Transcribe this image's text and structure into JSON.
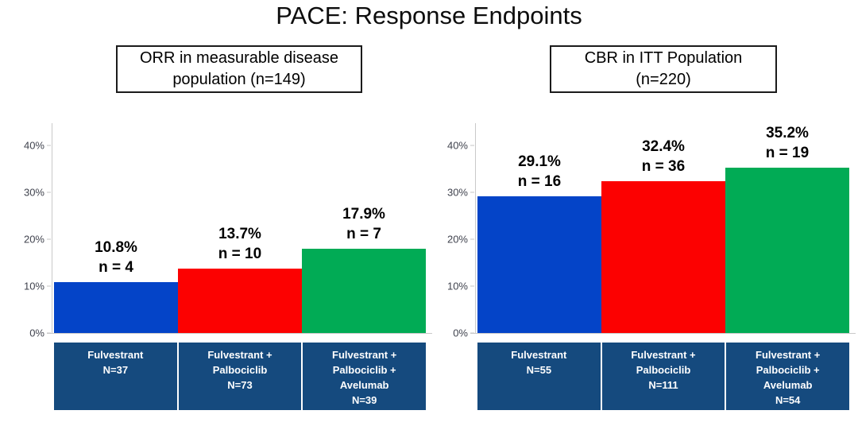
{
  "title": "PACE: Response Endpoints",
  "colors": {
    "bar_blue": "#0444C8",
    "bar_red": "#FC0101",
    "bar_green": "#01AB55",
    "category_box": "#154A7E",
    "axis_line": "#C9C9C9"
  },
  "chart_data": [
    {
      "type": "bar",
      "title": "ORR in measurable disease population (n=149)",
      "title_lines": [
        "ORR in measurable disease",
        "population (n=149)"
      ],
      "ylim": [
        0,
        40
      ],
      "grid": false,
      "legend": "none",
      "yticks": [
        {
          "label": "0%",
          "value": 0
        },
        {
          "label": "10%",
          "value": 10
        },
        {
          "label": "20%",
          "value": 20
        },
        {
          "label": "30%",
          "value": 30
        },
        {
          "label": "40%",
          "value": 40
        }
      ],
      "bars": [
        {
          "value_pct": 10.8,
          "value_label": "10.8%",
          "n": 4,
          "n_label": "n = 4",
          "color": "#0444C8",
          "category_lines": [
            "Fulvestrant",
            "N=37"
          ],
          "category_N": 37
        },
        {
          "value_pct": 13.7,
          "value_label": "13.7%",
          "n": 10,
          "n_label": "n = 10",
          "color": "#FC0101",
          "category_lines": [
            "Fulvestrant +",
            "Palbociclib",
            "N=73"
          ],
          "category_N": 73
        },
        {
          "value_pct": 17.9,
          "value_label": "17.9%",
          "n": 7,
          "n_label": "n = 7",
          "color": "#01AB55",
          "category_lines": [
            "Fulvestrant +",
            "Palbociclib +",
            "Avelumab",
            "N=39"
          ],
          "category_N": 39
        }
      ]
    },
    {
      "type": "bar",
      "title": "CBR in ITT Population (n=220)",
      "title_lines": [
        "CBR in ITT Population",
        "(n=220)"
      ],
      "ylim": [
        0,
        40
      ],
      "grid": false,
      "legend": "none",
      "yticks": [
        {
          "label": "0%",
          "value": 0
        },
        {
          "label": "10%",
          "value": 10
        },
        {
          "label": "20%",
          "value": 20
        },
        {
          "label": "30%",
          "value": 30
        },
        {
          "label": "40%",
          "value": 40
        }
      ],
      "bars": [
        {
          "value_pct": 29.1,
          "value_label": "29.1%",
          "n": 16,
          "n_label": "n = 16",
          "color": "#0444C8",
          "category_lines": [
            "Fulvestrant",
            "N=55"
          ],
          "category_N": 55
        },
        {
          "value_pct": 32.4,
          "value_label": "32.4%",
          "n": 36,
          "n_label": "n = 36",
          "color": "#FC0101",
          "category_lines": [
            "Fulvestrant +",
            "Palbociclib",
            "N=111"
          ],
          "category_N": 111
        },
        {
          "value_pct": 35.2,
          "value_label": "35.2%",
          "n": 19,
          "n_label": "n = 19",
          "color": "#01AB55",
          "category_lines": [
            "Fulvestrant +",
            "Palbociclib +",
            "Avelumab",
            "N=54"
          ],
          "category_N": 54
        }
      ]
    }
  ]
}
